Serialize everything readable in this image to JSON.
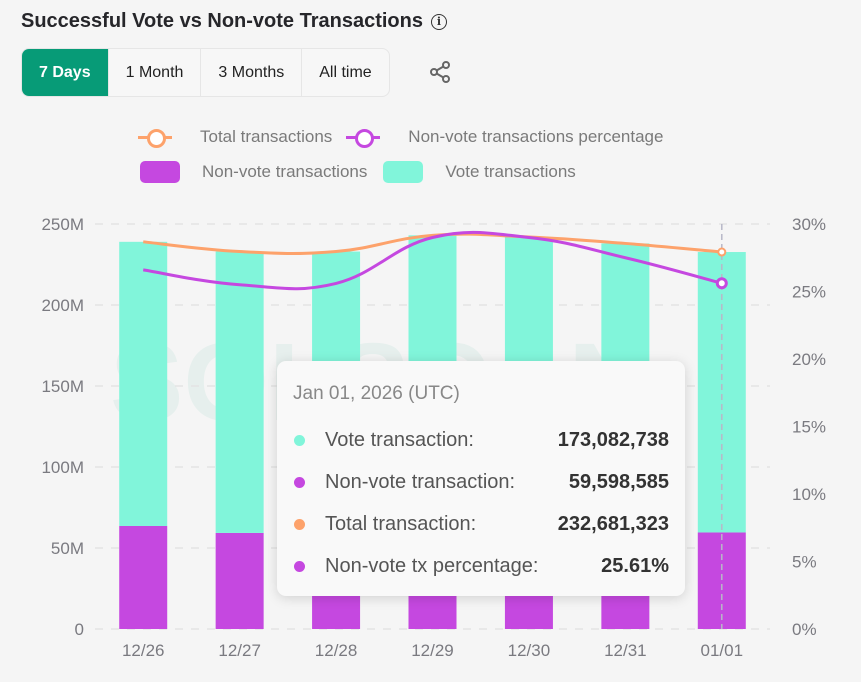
{
  "header": {
    "title": "Successful Vote vs Non-vote Transactions",
    "info_icon": "info-icon"
  },
  "tabs": [
    {
      "label": "7 Days",
      "active": true
    },
    {
      "label": "1 Month",
      "active": false
    },
    {
      "label": "3 Months",
      "active": false
    },
    {
      "label": "All time",
      "active": false
    }
  ],
  "share_icon": "share-icon",
  "colors": {
    "vote": "#81f5da",
    "non_vote": "#c548e0",
    "total": "#fda26b",
    "percentage": "#c548e0",
    "active_tab": "#079b77"
  },
  "legend": [
    {
      "label": "Total transactions",
      "kind": "line",
      "color": "#fda26b"
    },
    {
      "label": "Non-vote transactions percentage",
      "kind": "line",
      "color": "#c548e0"
    },
    {
      "label": "Non-vote transactions",
      "kind": "box",
      "color": "#c548e0"
    },
    {
      "label": "Vote transactions",
      "kind": "box",
      "color": "#81f5da"
    }
  ],
  "tooltip": {
    "date": "Jan 01, 2026 (UTC)",
    "rows": [
      {
        "label": "Vote transaction:",
        "value": "173,082,738",
        "color": "#81f5da"
      },
      {
        "label": "Non-vote transaction:",
        "value": "59,598,585",
        "color": "#c548e0"
      },
      {
        "label": "Total transaction:",
        "value": "232,681,323",
        "color": "#fda26b"
      },
      {
        "label": "Non-vote tx percentage:",
        "value": "25.61%",
        "color": "#c548e0"
      }
    ]
  },
  "chart_data": {
    "type": "bar",
    "stacked": true,
    "title": "Successful Vote vs Non-vote Transactions",
    "categories": [
      "12/26",
      "12/27",
      "12/28",
      "12/29",
      "12/30",
      "12/31",
      "01/01"
    ],
    "series": [
      {
        "name": "Non-vote transactions",
        "type": "bar",
        "axis": "left",
        "values": [
          63.6,
          59.3,
          59.6,
          70.5,
          70.2,
          65.4,
          59.6
        ]
      },
      {
        "name": "Vote transactions",
        "type": "bar",
        "axis": "left",
        "values": [
          175.4,
          173.7,
          173.4,
          172.5,
          171.8,
          172.6,
          173.1
        ]
      },
      {
        "name": "Total transactions",
        "type": "line",
        "axis": "left",
        "values": [
          239.0,
          233.0,
          233.0,
          243.0,
          242.0,
          238.0,
          232.7
        ]
      },
      {
        "name": "Non-vote transactions percentage",
        "type": "line",
        "axis": "right",
        "values": [
          26.6,
          25.5,
          25.6,
          29.0,
          29.0,
          27.5,
          25.61
        ]
      }
    ],
    "yaxis_left": {
      "ticks": [
        "0",
        "50M",
        "100M",
        "150M",
        "200M",
        "250M"
      ],
      "range": [
        0,
        250
      ],
      "unit": "M"
    },
    "yaxis_right": {
      "ticks": [
        "0%",
        "5%",
        "10%",
        "15%",
        "20%",
        "25%",
        "30%"
      ],
      "range": [
        0,
        30
      ],
      "unit": "%"
    },
    "grid": true,
    "legend_position": "top",
    "highlighted_category": "01/01"
  }
}
